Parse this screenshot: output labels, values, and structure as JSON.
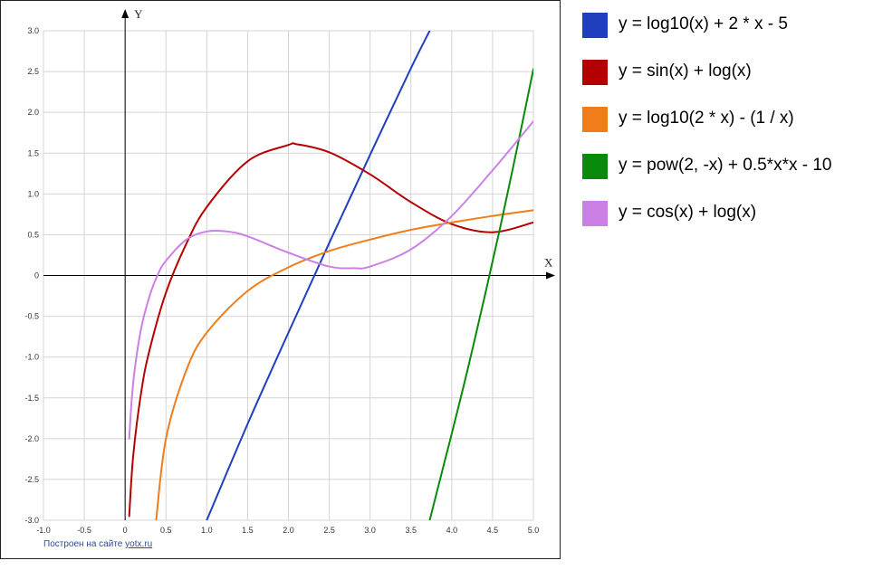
{
  "chart_data": {
    "type": "line",
    "xlabel": "X",
    "ylabel": "Y",
    "xlim": [
      -1.0,
      5.0
    ],
    "ylim": [
      -3.0,
      3.0
    ],
    "x_ticks": [
      "-1.0",
      "-0.5",
      "0",
      "0.5",
      "1.0",
      "1.5",
      "2.0",
      "2.5",
      "3.0",
      "3.5",
      "4.0",
      "4.5",
      "5.0"
    ],
    "y_ticks": [
      "3.0",
      "2.5",
      "2.0",
      "1.5",
      "1.0",
      "0.5",
      "0",
      "-0.5",
      "-1.0",
      "-1.5",
      "-2.0",
      "-2.5",
      "-3.0"
    ],
    "grid": true,
    "legend_position": "right",
    "series": [
      {
        "name": "y = log10(x) + 2 * x - 5",
        "color": "#1f3fbf",
        "x": [
          1.0,
          1.5,
          2.0,
          2.5,
          3.0,
          3.5,
          3.73
        ],
        "y": [
          -3.0,
          -1.82,
          -0.7,
          0.4,
          1.48,
          2.54,
          3.0
        ]
      },
      {
        "name": "y = sin(x) + log(x)",
        "color": "#b50000",
        "x": [
          0.05,
          0.1,
          0.2,
          0.3,
          0.5,
          0.75,
          1.0,
          1.5,
          2.0,
          2.1,
          2.5,
          3.0,
          3.5,
          4.0,
          4.5,
          5.0
        ],
        "y": [
          -2.95,
          -2.2,
          -1.41,
          -0.91,
          -0.21,
          0.39,
          0.84,
          1.4,
          1.6,
          1.61,
          1.51,
          1.24,
          0.9,
          0.63,
          0.53,
          0.65
        ]
      },
      {
        "name": "y = log10(2 * x) - (1 / x)",
        "color": "#f07c1a",
        "x": [
          0.38,
          0.5,
          0.75,
          1.0,
          1.5,
          2.0,
          2.5,
          3.0,
          3.5,
          4.0,
          4.5,
          5.0
        ],
        "y": [
          -3.0,
          -2.0,
          -1.16,
          -0.7,
          -0.19,
          0.1,
          0.3,
          0.44,
          0.56,
          0.65,
          0.73,
          0.8
        ]
      },
      {
        "name": "y = pow(2, -x) + 0.5*x*x - 10",
        "color": "#0a8a0a",
        "x": [
          3.73,
          3.9,
          4.0,
          4.2,
          4.4,
          4.47,
          4.6,
          4.8,
          5.0
        ],
        "y": [
          -3.0,
          -2.33,
          -1.94,
          -1.13,
          -0.27,
          0.04,
          0.62,
          1.56,
          2.53
        ]
      },
      {
        "name": "y = cos(x) + log(x)",
        "color": "#cc80e6",
        "x": [
          0.05,
          0.08,
          0.12,
          0.2,
          0.3,
          0.4,
          0.5,
          0.75,
          1.0,
          1.25,
          1.5,
          2.0,
          2.5,
          2.8,
          3.0,
          3.5,
          4.0,
          4.5,
          5.0
        ],
        "y": [
          -2.0,
          -1.53,
          -1.13,
          -0.63,
          -0.25,
          0.01,
          0.18,
          0.44,
          0.54,
          0.54,
          0.48,
          0.28,
          0.11,
          0.09,
          0.11,
          0.32,
          0.73,
          1.29,
          1.89
        ]
      }
    ],
    "footer_text": "Построен на сайте",
    "footer_link": "yotx.ru"
  }
}
